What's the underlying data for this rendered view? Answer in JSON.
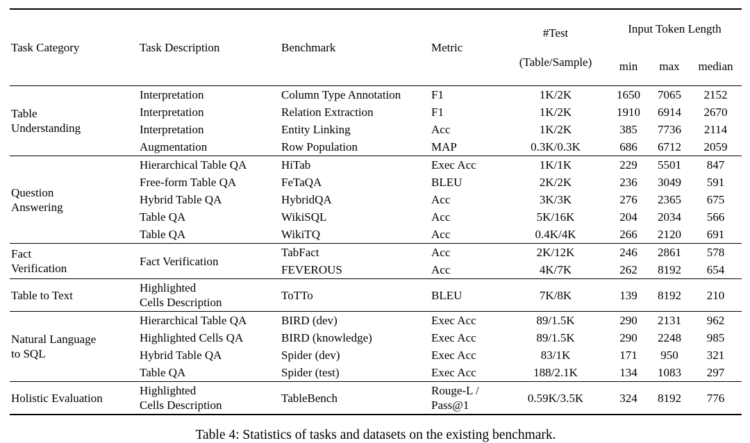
{
  "caption": "Table 4: Statistics of tasks and datasets on the existing benchmark.",
  "header": {
    "task_category": "Task Category",
    "task_description": "Task Description",
    "benchmark": "Benchmark",
    "metric": "Metric",
    "test_label": "#Test",
    "test_sublabel": "(Table/Sample)",
    "input_token_length": "Input Token Length",
    "min": "min",
    "max": "max",
    "median": "median"
  },
  "groups": [
    {
      "category": "Table\nUnderstanding",
      "rows": [
        {
          "description": "Interpretation",
          "benchmark": "Column Type Annotation",
          "metric": "F1",
          "test": "1K/2K",
          "min": "1650",
          "max": "7065",
          "median": "2152"
        },
        {
          "description": "Interpretation",
          "benchmark": "Relation Extraction",
          "metric": "F1",
          "test": "1K/2K",
          "min": "1910",
          "max": "6914",
          "median": "2670"
        },
        {
          "description": "Interpretation",
          "benchmark": "Entity Linking",
          "metric": "Acc",
          "test": "1K/2K",
          "min": "385",
          "max": "7736",
          "median": "2114"
        },
        {
          "description": "Augmentation",
          "benchmark": "Row Population",
          "metric": "MAP",
          "test": "0.3K/0.3K",
          "min": "686",
          "max": "6712",
          "median": "2059"
        }
      ]
    },
    {
      "category": "Question\nAnswering",
      "rows": [
        {
          "description": "Hierarchical Table QA",
          "benchmark": "HiTab",
          "metric": "Exec Acc",
          "test": "1K/1K",
          "min": "229",
          "max": "5501",
          "median": "847"
        },
        {
          "description": "Free-form Table QA",
          "benchmark": "FeTaQA",
          "metric": "BLEU",
          "test": "2K/2K",
          "min": "236",
          "max": "3049",
          "median": "591"
        },
        {
          "description": "Hybrid Table QA",
          "benchmark": "HybridQA",
          "metric": "Acc",
          "test": "3K/3K",
          "min": "276",
          "max": "2365",
          "median": "675"
        },
        {
          "description": "Table QA",
          "benchmark": "WikiSQL",
          "metric": "Acc",
          "test": "5K/16K",
          "min": "204",
          "max": "2034",
          "median": "566"
        },
        {
          "description": "Table QA",
          "benchmark": "WikiTQ",
          "metric": "Acc",
          "test": "0.4K/4K",
          "min": "266",
          "max": "2120",
          "median": "691"
        }
      ]
    },
    {
      "category": "Fact\nVerification",
      "shared_description": "Fact Verification",
      "rows": [
        {
          "benchmark": "TabFact",
          "metric": "Acc",
          "test": "2K/12K",
          "min": "246",
          "max": "2861",
          "median": "578"
        },
        {
          "benchmark": "FEVEROUS",
          "metric": "Acc",
          "test": "4K/7K",
          "min": "262",
          "max": "8192",
          "median": "654"
        }
      ]
    },
    {
      "category": "Table to Text",
      "rows": [
        {
          "description": "Highlighted\nCells Description",
          "benchmark": "ToTTo",
          "metric": "BLEU",
          "test": "7K/8K",
          "min": "139",
          "max": "8192",
          "median": "210"
        }
      ]
    },
    {
      "category": "Natural Language\nto SQL",
      "rows": [
        {
          "description": "Hierarchical Table QA",
          "benchmark": "BIRD (dev)",
          "metric": "Exec Acc",
          "test": "89/1.5K",
          "min": "290",
          "max": "2131",
          "median": "962"
        },
        {
          "description": "Highlighted Cells QA",
          "benchmark": "BIRD (knowledge)",
          "metric": "Exec Acc",
          "test": "89/1.5K",
          "min": "290",
          "max": "2248",
          "median": "985"
        },
        {
          "description": "Hybrid Table QA",
          "benchmark": "Spider (dev)",
          "metric": "Exec Acc",
          "test": "83/1K",
          "min": "171",
          "max": "950",
          "median": "321"
        },
        {
          "description": "Table QA",
          "benchmark": "Spider (test)",
          "metric": "Exec Acc",
          "test": "188/2.1K",
          "min": "134",
          "max": "1083",
          "median": "297"
        }
      ]
    },
    {
      "category": "Holistic Evaluation",
      "rows": [
        {
          "description": "Highlighted\nCells Description",
          "benchmark": "TableBench",
          "metric": "Rouge-L /\nPass@1",
          "test": "0.59K/3.5K",
          "min": "324",
          "max": "8192",
          "median": "776"
        }
      ]
    }
  ]
}
